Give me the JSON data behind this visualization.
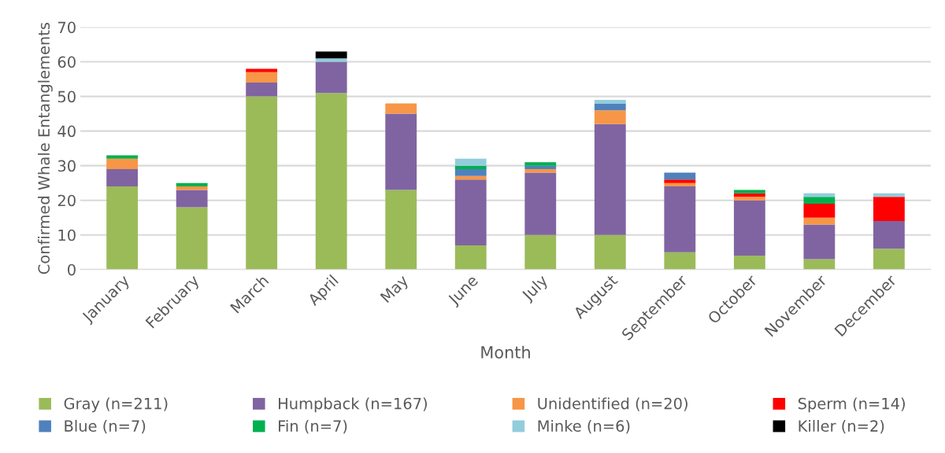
{
  "chart_data": {
    "type": "bar",
    "stacked": true,
    "xlabel": "Month",
    "ylabel": "Confirmed Whale Entanglements",
    "categories": [
      "January",
      "February",
      "March",
      "April",
      "May",
      "June",
      "July",
      "August",
      "September",
      "October",
      "November",
      "December"
    ],
    "series": [
      {
        "name": "Gray (n=211)",
        "color": "#9bbb59",
        "values": [
          24,
          18,
          50,
          51,
          23,
          7,
          10,
          10,
          5,
          4,
          3,
          6
        ]
      },
      {
        "name": "Humpback (n=167)",
        "color": "#8064a2",
        "values": [
          5,
          5,
          4,
          9,
          22,
          19,
          18,
          32,
          19,
          16,
          10,
          8
        ]
      },
      {
        "name": "Unidentified (n=20)",
        "color": "#f79646",
        "values": [
          3,
          1,
          3,
          0,
          3,
          1,
          1,
          4,
          1,
          1,
          2,
          0
        ]
      },
      {
        "name": "Sperm (n=14)",
        "color": "#ff0000",
        "values": [
          0,
          0,
          1,
          0,
          0,
          0,
          0,
          0,
          1,
          1,
          4,
          7
        ]
      },
      {
        "name": "Blue (n=7)",
        "color": "#4f81bd",
        "values": [
          0,
          0,
          0,
          0,
          0,
          2,
          1,
          2,
          2,
          0,
          0,
          0
        ]
      },
      {
        "name": "Fin (n=7)",
        "color": "#00b050",
        "values": [
          1,
          1,
          0,
          0,
          0,
          1,
          1,
          0,
          0,
          1,
          2,
          0
        ]
      },
      {
        "name": "Minke (n=6)",
        "color": "#92cddc",
        "values": [
          0,
          0,
          0,
          1,
          0,
          2,
          0,
          1,
          0,
          0,
          1,
          1
        ]
      },
      {
        "name": "Killer (n=2)",
        "color": "#000000",
        "values": [
          0,
          0,
          0,
          2,
          0,
          0,
          0,
          0,
          0,
          0,
          0,
          0
        ]
      }
    ],
    "ylim": [
      0,
      70
    ],
    "yticks": [
      0,
      10,
      20,
      30,
      40,
      50,
      60,
      70
    ],
    "grid": "y",
    "legend": "bottom"
  }
}
